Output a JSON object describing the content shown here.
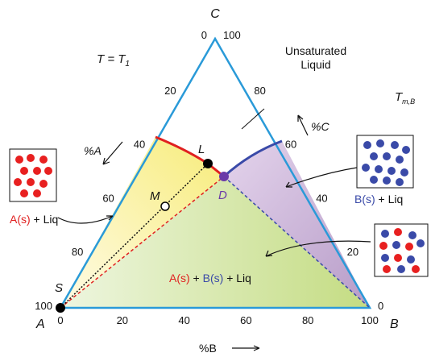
{
  "diagram": {
    "vertices": {
      "C": "C",
      "A": "A",
      "B": "B"
    },
    "temperature": {
      "main": "T = T",
      "sub": "1"
    },
    "melting": {
      "main": "T",
      "sub": "m,B"
    },
    "region_liquid": [
      "Unsaturated",
      "Liquid"
    ],
    "left_ticks": [
      "0",
      "20",
      "40",
      "60",
      "80",
      "100"
    ],
    "right_ticks": [
      "100",
      "80",
      "60",
      "40",
      "20",
      "0"
    ],
    "bottom_ticks": [
      "0",
      "20",
      "40",
      "60",
      "80",
      "100"
    ],
    "axis_labels": {
      "A": "%A",
      "B": "%B",
      "C": "%C"
    },
    "points": {
      "L": "L",
      "M": "M",
      "D": "D",
      "S": "S"
    },
    "region_a": {
      "species": "A(s)",
      "rest": " + Liq"
    },
    "region_b": {
      "species": "B(s)",
      "rest": " + Liq"
    },
    "region_ab": [
      "A(s)",
      " + ",
      "B(s)",
      " + Liq"
    ]
  }
}
